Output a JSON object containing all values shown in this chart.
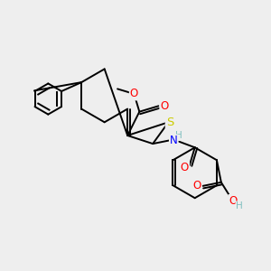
{
  "bg_color": "#eeeeee",
  "atom_colors": {
    "C": "#000000",
    "H": "#7fbfbf",
    "N": "#0000ff",
    "O": "#ff0000",
    "S": "#cccc00"
  },
  "bond_color": "#000000",
  "bond_width": 1.4,
  "font_size": 8.5
}
